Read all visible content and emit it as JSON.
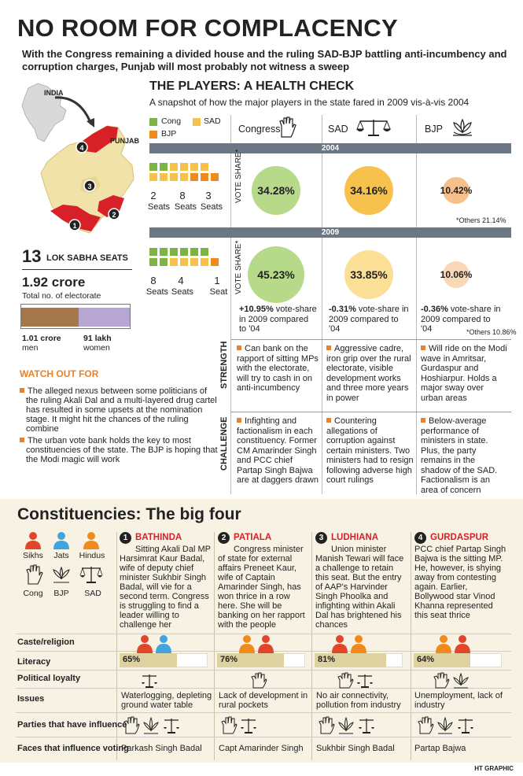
{
  "title": "NO ROOM FOR COMPLACENCY",
  "subtitle": "With the Congress remaining a divided house and the ruling SAD-BJP battling anti-incumbency and corruption charges, Punjab will most probably not witness a sweep",
  "map": {
    "india_label": "INDIA",
    "punjab_label": "PUNJAB",
    "markers": [
      "1",
      "2",
      "3",
      "4"
    ]
  },
  "seats": {
    "count": "13",
    "label": "LOK SABHA SEATS"
  },
  "electorate": {
    "total": "1.92 crore",
    "total_label": "Total no. of electorate",
    "men_value": "1.01 crore",
    "men_label": "men",
    "women_value": "91 lakh",
    "women_label": "women",
    "men_fraction": 0.526,
    "colors": {
      "men": "#a5784c",
      "women": "#b7a6d2"
    }
  },
  "watch": {
    "heading": "WATCH OUT FOR",
    "items": [
      "The alleged nexus between some politicians of the ruling Akali Dal and a multi-layered drug cartel has resulted in some upsets at the nomination stage. It might hit the chances of the ruling combine",
      "The urban vote bank holds the key to most constituencies of the state. The BJP is hoping that the Modi magic will work"
    ]
  },
  "players": {
    "title": "THE PLAYERS: A HEALTH CHECK",
    "subtitle": "A snapshot of how the major players in the state fared in 2009 vis-à-vis 2004",
    "legend": {
      "cong": "Cong",
      "sad": "SAD",
      "bjp": "BJP"
    },
    "parties": {
      "congress": "Congress",
      "sad": "SAD",
      "bjp": "BJP"
    },
    "colors": {
      "cong": "#7cb342",
      "sad": "#f6c24c",
      "bjp": "#f08a1c"
    },
    "vote_share_label": "VOTE SHARE*",
    "year_2004": {
      "label": "2004",
      "seats": [
        {
          "num": "2",
          "label": "Seats"
        },
        {
          "num": "8",
          "label": "Seats"
        },
        {
          "num": "3",
          "label": "Seats"
        }
      ],
      "seat_counts": [
        2,
        8,
        3
      ],
      "vote_share": {
        "congress": "34.28%",
        "sad": "34.16%",
        "bjp": "10.42%"
      },
      "vote_values": [
        34.28,
        34.16,
        10.42
      ],
      "others": "*Others 21.14%"
    },
    "year_2009": {
      "label": "2009",
      "seats": [
        {
          "num": "8",
          "label": "Seats"
        },
        {
          "num": "4",
          "label": "Seats"
        },
        {
          "num": "1",
          "label": "Seat"
        }
      ],
      "seat_counts": [
        8,
        4,
        1
      ],
      "vote_share": {
        "congress": "45.23%",
        "sad": "33.85%",
        "bjp": "10.06%"
      },
      "vote_values": [
        45.23,
        33.85,
        10.06
      ],
      "change": {
        "congress_bold": "+10.95%",
        "congress_rest": " vote-share in 2009 compared to '04",
        "sad_bold": "-0.31%",
        "sad_rest": " vote-share in 2009 compared to '04",
        "bjp_bold": "-0.36%",
        "bjp_rest": " vote-share in 2009 compared to '04"
      },
      "others": "*Others 10.86%"
    },
    "strength_label": "STRENGTH",
    "strength": {
      "congress": "Can bank on the rapport of sitting MPs with the electorate, will try to cash in on anti-incumbency",
      "sad": "Aggressive cadre, iron grip over the rural electorate, visible development works and three more years in power",
      "bjp": "Will ride on the Modi wave in Amritsar, Gurdaspur and Hoshiarpur. Holds a major sway over urban areas"
    },
    "challenge_label": "CHALLENGE",
    "challenge": {
      "congress": "Infighting and factionalism in each constituency. Former CM Amarinder Singh and PCC chief Partap Singh Bajwa are at daggers drawn",
      "sad": "Countering allegations of corruption against certain ministers. Two ministers had to resign following adverse high court rulings",
      "bjp": "Below-average performance of ministers in state. Plus, the party remains in the shadow of the SAD. Factionalism is an area of concern"
    }
  },
  "big_four": {
    "title": "Constituencies: The big four",
    "legend": {
      "sikhs": "Sikhs",
      "jats": "Jats",
      "hindus": "Hindus",
      "cong": "Cong",
      "bjp": "BJP",
      "sad": "SAD",
      "colors": {
        "sikhs": "#e2462a",
        "jats": "#41a5dd",
        "hindus": "#f08a1c"
      }
    },
    "constituencies": [
      {
        "num": "1",
        "name": "BATHINDA",
        "desc": "Sitting Akali Dal MP Harsimrat Kaur Badal, wife of deputy chief minister Sukhbir Singh Badal, will vie for a second term. Congress is struggling to find a leader willing to challenge her",
        "literacy": "65%",
        "literacy_value": 65,
        "issues": "Waterlogging, depleting ground water table",
        "faces": "Parkash Singh Badal"
      },
      {
        "num": "2",
        "name": "PATIALA",
        "desc": "Congress minister of state for external affairs Preneet Kaur, wife of Captain Amarinder Singh, has won thrice in a row here. She will be banking on her rapport with the people",
        "literacy": "76%",
        "literacy_value": 76,
        "issues": "Lack of development in rural pockets",
        "faces": "Capt Amarinder Singh"
      },
      {
        "num": "3",
        "name": "LUDHIANA",
        "desc": "Union minister Manish Tewari will face a challenge to retain this seat. But the entry of AAP's Harvinder Singh Phoolka and infighting within Akali Dal has brightened his chances",
        "literacy": "81%",
        "literacy_value": 81,
        "issues": "No air connectivity, pollution from industry",
        "faces": "Sukhbir Singh Badal"
      },
      {
        "num": "4",
        "name": "GURDASPUR",
        "desc": "PCC chief Partap Singh Bajwa is the sitting MP. He, however, is shying away from contesting again. Earlier, Bollywood star Vinod Khanna represented this seat thrice",
        "literacy": "64%",
        "literacy_value": 64,
        "issues": "Unemployment, lack of industry",
        "faces": "Partap Bajwa"
      }
    ],
    "rows": {
      "caste": "Caste/religion",
      "literacy": "Literacy",
      "loyalty": "Political loyalty",
      "issues": "Issues",
      "parties": "Parties that have influence",
      "faces": "Faces that influence voting"
    }
  },
  "credit": "HT GRAPHIC"
}
